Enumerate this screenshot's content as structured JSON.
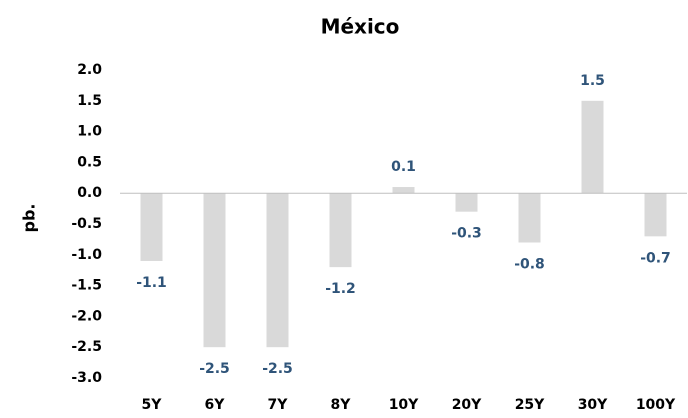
{
  "chart_data": {
    "type": "bar",
    "title": "México",
    "y_label": "pb.",
    "categories": [
      "5Y",
      "6Y",
      "7Y",
      "8Y",
      "10Y",
      "20Y",
      "25Y",
      "30Y",
      "100Y"
    ],
    "values": [
      -1.1,
      -2.5,
      -2.5,
      -1.2,
      0.1,
      -0.3,
      -0.8,
      1.5,
      -0.7
    ],
    "color": "#d9d9d9",
    "label_color": "#2f5479",
    "ylim": [
      -3,
      2
    ],
    "yticks": [
      {
        "value": 2,
        "label": "2.0"
      },
      {
        "value": 1.5,
        "label": "1.5"
      },
      {
        "value": 1,
        "label": "1.0"
      },
      {
        "value": 0.5,
        "label": "0.5"
      },
      {
        "value": 0,
        "label": "0.0"
      },
      {
        "value": -0.5,
        "label": "-0.5"
      },
      {
        "value": -1,
        "label": "-1.0"
      },
      {
        "value": -1.5,
        "label": "-1.5"
      },
      {
        "value": -2,
        "label": "-2.0"
      },
      {
        "value": -2.5,
        "label": "-2.5"
      },
      {
        "value": -3,
        "label": "-3.0"
      }
    ],
    "grid": false
  }
}
